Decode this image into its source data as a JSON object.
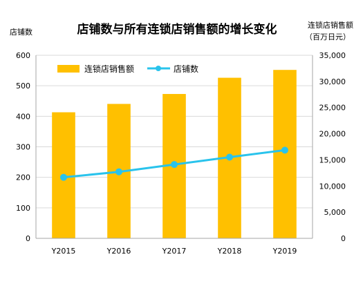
{
  "chart_data": {
    "type": "bar+line",
    "title": "店铺数与所有连锁店销售额的增长变化",
    "left_axis_label": "店铺数",
    "right_axis_label_line1": "连锁店销售额",
    "right_axis_label_line2": "（百万日元）",
    "categories": [
      "Y2015",
      "Y2016",
      "Y2017",
      "Y2018",
      "Y2019"
    ],
    "left_ylim": [
      0,
      600
    ],
    "left_ticks": [
      0,
      100,
      200,
      300,
      400,
      500,
      600
    ],
    "right_ylim": [
      0,
      35000
    ],
    "right_ticks": [
      0,
      5000,
      10000,
      15000,
      20000,
      25000,
      30000,
      35000
    ],
    "right_tick_labels": [
      "0",
      "5,000",
      "10,000",
      "15,000",
      "20,000",
      "25,000",
      "30,000",
      "35,000"
    ],
    "series": [
      {
        "name": "连锁店销售额",
        "type": "bar",
        "axis": "right",
        "color": "#FFC000",
        "values": [
          24100,
          25700,
          27600,
          30700,
          32200
        ]
      },
      {
        "name": "店铺数",
        "type": "line",
        "axis": "left",
        "color": "#29C3EC",
        "values": [
          200,
          218,
          242,
          266,
          289
        ]
      }
    ],
    "legend_position": "top-left"
  }
}
